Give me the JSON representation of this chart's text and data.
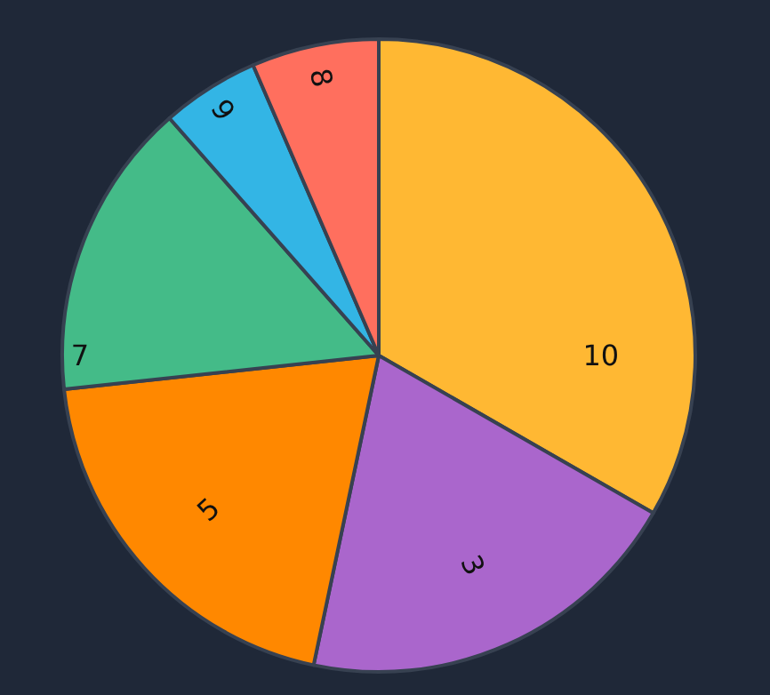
{
  "chart_data": {
    "type": "pie",
    "categories": [
      "10",
      "3",
      "5",
      "7",
      "9",
      "8"
    ],
    "values": [
      33.3,
      20,
      20,
      15.2,
      5,
      6.5
    ],
    "colors": [
      "#ffb833",
      "#aa66cc",
      "#ff8800",
      "#44bb88",
      "#33b5e5",
      "#ff6f5e"
    ],
    "legend": false
  }
}
